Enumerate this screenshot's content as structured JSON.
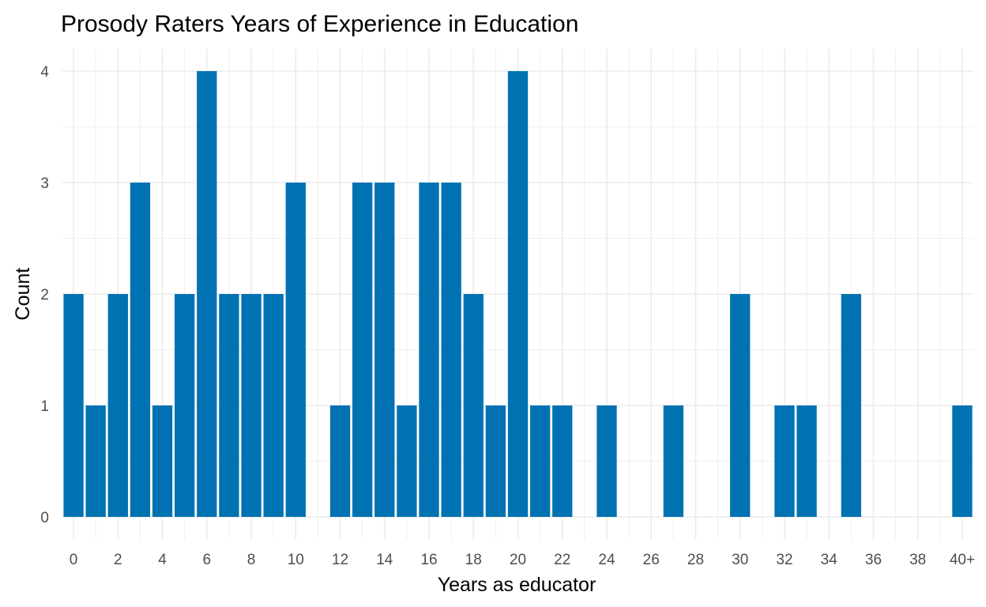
{
  "chart_data": {
    "type": "bar",
    "title": "Prosody Raters Years of Experience in Education",
    "xlabel": "Years as educator",
    "ylabel": "Count",
    "x": [
      0,
      1,
      2,
      3,
      4,
      5,
      6,
      7,
      8,
      9,
      10,
      11,
      12,
      13,
      14,
      15,
      16,
      17,
      18,
      19,
      20,
      21,
      22,
      23,
      24,
      25,
      26,
      27,
      28,
      29,
      30,
      31,
      32,
      33,
      34,
      35,
      36,
      37,
      38,
      39,
      40
    ],
    "values": [
      2,
      1,
      2,
      3,
      1,
      2,
      4,
      2,
      2,
      2,
      3,
      0,
      1,
      3,
      3,
      1,
      3,
      3,
      2,
      1,
      4,
      1,
      1,
      0,
      1,
      0,
      0,
      1,
      0,
      0,
      2,
      0,
      1,
      1,
      0,
      2,
      0,
      0,
      0,
      0,
      1
    ],
    "x_ticks": [
      0,
      2,
      4,
      6,
      8,
      10,
      12,
      14,
      16,
      18,
      20,
      22,
      24,
      26,
      28,
      30,
      32,
      34,
      36,
      38,
      40
    ],
    "x_tick_labels": [
      "0",
      "2",
      "4",
      "6",
      "8",
      "10",
      "12",
      "14",
      "16",
      "18",
      "20",
      "22",
      "24",
      "26",
      "28",
      "30",
      "32",
      "34",
      "36",
      "38",
      "40+"
    ],
    "y_ticks": [
      0,
      1,
      2,
      3,
      4
    ],
    "ylim": [
      0,
      4.2
    ],
    "xlim": [
      -0.5,
      40.5
    ],
    "grid": true,
    "bar_color": "#0072B2",
    "grid_color": "#ebebeb"
  }
}
